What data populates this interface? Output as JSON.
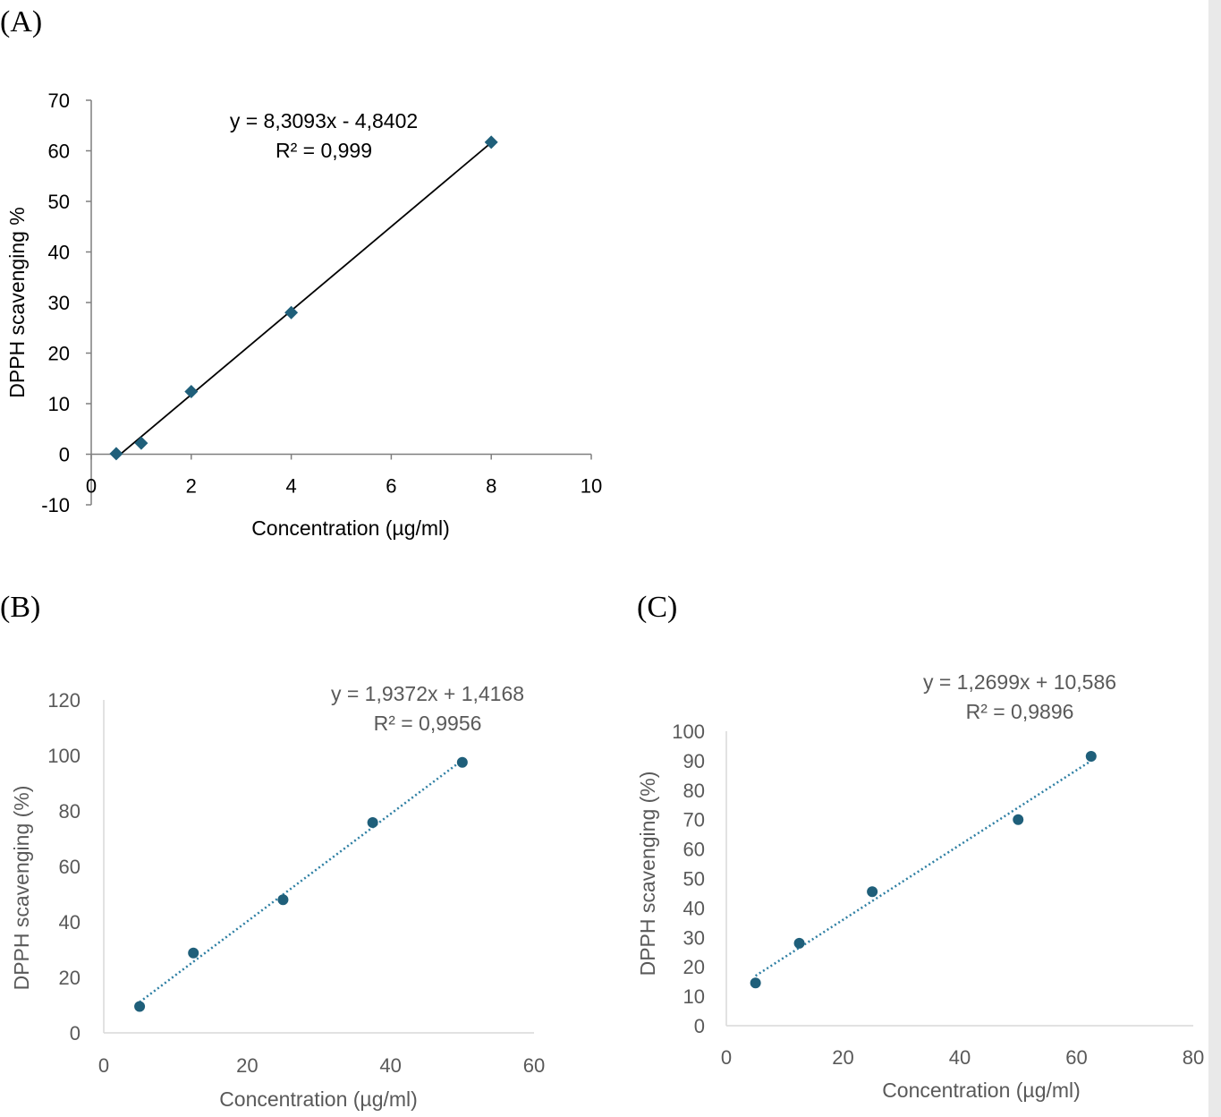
{
  "panels": [
    {
      "label": "(A)",
      "chart_data": {
        "type": "scatter",
        "xlabel": "Concentration (µg/ml)",
        "ylabel": "DPPH scavenging %",
        "xlim": [
          0,
          10
        ],
        "ylim": [
          -10,
          70
        ],
        "x_ticks": [
          "0",
          "2",
          "4",
          "6",
          "8",
          "10"
        ],
        "y_ticks": [
          "-10",
          "0",
          "10",
          "20",
          "30",
          "40",
          "50",
          "60",
          "70"
        ],
        "marker": "diamond",
        "trendline": "solid",
        "equation": "y = 8,3093x - 4,8402",
        "r2": "R² = 0,999",
        "series": [
          {
            "x": [
              0.5,
              1,
              2,
              4,
              8
            ],
            "y": [
              0.1,
              2.2,
              12.4,
              28.0,
              61.7
            ]
          }
        ],
        "trend": {
          "slope": 8.3093,
          "intercept": -4.8402,
          "x_range": [
            0.5,
            8
          ]
        },
        "colors": {
          "marker": "#1f5f7a",
          "line": "#000000",
          "axis": "#7f7f7f",
          "text": "#000000"
        }
      }
    },
    {
      "label": "(B)",
      "chart_data": {
        "type": "scatter",
        "xlabel": "Concentration (µg/ml)",
        "ylabel": "DPPH scavenging (%)",
        "xlim": [
          0,
          60
        ],
        "ylim": [
          0,
          120
        ],
        "x_ticks": [
          "0",
          "20",
          "40",
          "60"
        ],
        "y_ticks": [
          "0",
          "20",
          "40",
          "60",
          "80",
          "100",
          "120"
        ],
        "marker": "circle",
        "trendline": "dotted",
        "equation": "y = 1,9372x + 1,4168",
        "r2": "R² = 0,9956",
        "series": [
          {
            "x": [
              5,
              12.5,
              25,
              37.5,
              50
            ],
            "y": [
              9.5,
              28.8,
              48.0,
              75.8,
              97.5
            ]
          }
        ],
        "trend": {
          "slope": 1.9372,
          "intercept": 1.4168,
          "x_range": [
            5,
            50
          ]
        },
        "colors": {
          "marker": "#1f5f7a",
          "line": "#2e7fa3",
          "axis": "#d9d9d9",
          "text": "#595959"
        }
      }
    },
    {
      "label": "(C)",
      "chart_data": {
        "type": "scatter",
        "xlabel": "Concentration (µg/ml)",
        "ylabel": "DPPH scavenging (%)",
        "xlim": [
          0,
          80
        ],
        "ylim": [
          0,
          100
        ],
        "x_ticks": [
          "0",
          "20",
          "40",
          "60",
          "80"
        ],
        "y_ticks": [
          "0",
          "10",
          "20",
          "30",
          "40",
          "50",
          "60",
          "70",
          "80",
          "90",
          "100"
        ],
        "marker": "circle",
        "trendline": "dotted",
        "equation": "y = 1,2699x + 10,586",
        "r2": "R² = 0,9896",
        "series": [
          {
            "x": [
              5,
              12.5,
              25,
              50,
              62.5
            ],
            "y": [
              14.5,
              28.0,
              45.5,
              70.0,
              91.5
            ]
          }
        ],
        "trend": {
          "slope": 1.2699,
          "intercept": 10.586,
          "x_range": [
            5,
            62.5
          ]
        },
        "colors": {
          "marker": "#1f5f7a",
          "line": "#2e7fa3",
          "axis": "#d9d9d9",
          "text": "#595959"
        }
      }
    }
  ]
}
